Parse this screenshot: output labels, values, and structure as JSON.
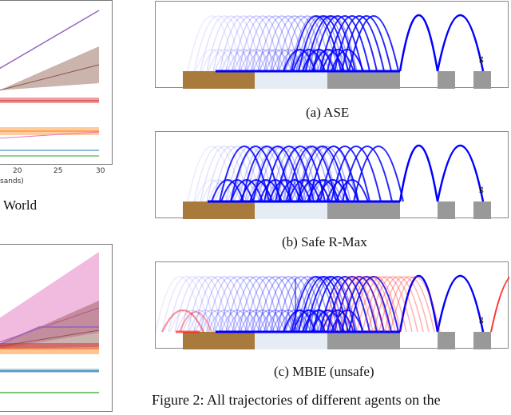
{
  "left_top_chart": {
    "x_ticks": [
      "20",
      "25",
      "30"
    ],
    "xlabel_fragment": "sands)",
    "caption_fragment": "World"
  },
  "chart_data": [
    {
      "type": "line",
      "title": "",
      "xlabel": "(thousands)",
      "x_ticks": [
        20,
        25,
        30
      ],
      "xlim": [
        15,
        30
      ],
      "series": [
        {
          "name": "purple",
          "color": "#9467bd",
          "x": [
            15,
            30
          ],
          "y": [
            0.58,
            0.94
          ]
        },
        {
          "name": "brown",
          "color": "#8c564b",
          "x": [
            15,
            30
          ],
          "y": [
            0.45,
            0.61
          ],
          "band": [
            [
              0.45,
              0.45
            ],
            [
              0.49,
              0.73
            ]
          ]
        },
        {
          "name": "red",
          "color": "#d62728",
          "x": [
            15,
            30
          ],
          "y": [
            0.38,
            0.38
          ]
        },
        {
          "name": "orange",
          "color": "#ff7f0e",
          "x": [
            15,
            30
          ],
          "y": [
            0.2,
            0.2
          ]
        },
        {
          "name": "pink",
          "color": "#e377c2",
          "x": [
            15,
            30
          ],
          "y": [
            0.15,
            0.2
          ]
        },
        {
          "name": "blue",
          "color": "#1f77b4",
          "x": [
            15,
            30
          ],
          "y": [
            0.09,
            0.09
          ]
        },
        {
          "name": "green",
          "color": "#2ca02c",
          "x": [
            15,
            30
          ],
          "y": [
            0.06,
            0.06
          ]
        }
      ]
    },
    {
      "type": "line",
      "title": "",
      "xlim": [
        15,
        30
      ],
      "series": [
        {
          "name": "pink",
          "color": "#e377c2",
          "x": [
            15,
            30
          ],
          "y": [
            0.37,
            0.6
          ],
          "band": [
            [
              0.32,
              0.32
            ],
            [
              0.58,
              0.94
            ]
          ]
        },
        {
          "name": "brown",
          "color": "#8c564b",
          "x": [
            15,
            30
          ],
          "y": [
            0.36,
            0.48
          ]
        },
        {
          "name": "purple",
          "color": "#9467bd",
          "x": [
            15,
            22,
            30
          ],
          "y": [
            0.38,
            0.5,
            0.5
          ]
        },
        {
          "name": "red",
          "color": "#d62728",
          "x": [
            15,
            30
          ],
          "y": [
            0.36,
            0.36
          ]
        },
        {
          "name": "orange",
          "color": "#ff7f0e",
          "x": [
            15,
            30
          ],
          "y": [
            0.33,
            0.33
          ]
        },
        {
          "name": "blue",
          "color": "#1f77b4",
          "x": [
            15,
            30
          ],
          "y": [
            0.21,
            0.21
          ]
        },
        {
          "name": "green",
          "color": "#2ca02c",
          "x": [
            15,
            30
          ],
          "y": [
            0.08,
            0.08
          ]
        }
      ]
    }
  ],
  "panels": [
    {
      "caption": "(a) ASE",
      "goal_label": "g"
    },
    {
      "caption": "(b) Safe R-Max",
      "goal_label": "g"
    },
    {
      "caption": "(c) MBIE (unsafe)",
      "goal_label": "g"
    }
  ],
  "figure_caption": "Figure 2: All trajectories of different agents on the",
  "colors": {
    "safe": "#0000ff",
    "unsafe": "#ff2020",
    "brown": "#a87a3c",
    "ice": "#e6ecf4",
    "stone": "#999999"
  }
}
